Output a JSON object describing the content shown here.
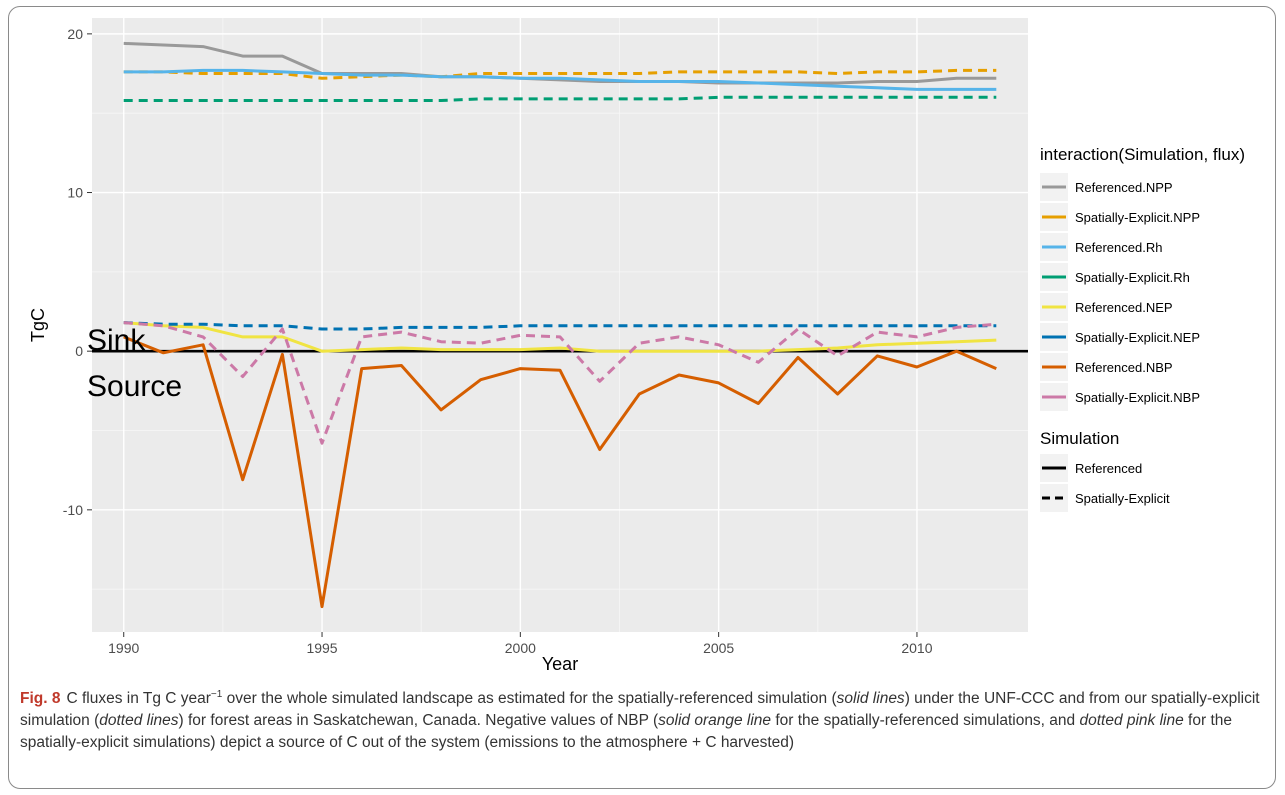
{
  "chart_data": {
    "type": "line",
    "xlabel": "Year",
    "ylabel": "TgC",
    "x": [
      1990,
      1991,
      1992,
      1993,
      1994,
      1995,
      1996,
      1997,
      1998,
      1999,
      2000,
      2001,
      2002,
      2003,
      2004,
      2005,
      2006,
      2007,
      2008,
      2009,
      2010,
      2011,
      2012
    ],
    "xlim": [
      1989.2,
      2012.8
    ],
    "ylim": [
      -17.7,
      21.0
    ],
    "x_ticks": [
      "1990",
      "1995",
      "2000",
      "2005",
      "2010"
    ],
    "y_ticks": [
      "-10",
      "0",
      "10",
      "20"
    ],
    "grid": true,
    "series": [
      {
        "name": "Referenced.NPP",
        "color": "#999999",
        "linetype": "solid",
        "values": [
          19.4,
          19.3,
          19.2,
          18.6,
          18.6,
          17.5,
          17.5,
          17.5,
          17.3,
          17.3,
          17.2,
          17.1,
          17.0,
          17.0,
          17.0,
          16.9,
          16.9,
          16.9,
          16.9,
          17.0,
          17.0,
          17.2,
          17.2
        ]
      },
      {
        "name": "Spatially-Explicit.NPP",
        "color": "#E69F00",
        "linetype": "dashed",
        "values": [
          17.6,
          17.6,
          17.5,
          17.5,
          17.5,
          17.2,
          17.3,
          17.4,
          17.3,
          17.5,
          17.5,
          17.5,
          17.5,
          17.5,
          17.6,
          17.6,
          17.6,
          17.6,
          17.5,
          17.6,
          17.6,
          17.7,
          17.7
        ]
      },
      {
        "name": "Referenced.Rh",
        "color": "#56B4E9",
        "linetype": "solid",
        "values": [
          17.6,
          17.6,
          17.7,
          17.7,
          17.6,
          17.5,
          17.4,
          17.4,
          17.3,
          17.3,
          17.2,
          17.2,
          17.1,
          17.0,
          17.0,
          17.0,
          16.9,
          16.8,
          16.7,
          16.6,
          16.5,
          16.5,
          16.5
        ]
      },
      {
        "name": "Spatially-Explicit.Rh",
        "color": "#009E73",
        "linetype": "dashed",
        "values": [
          15.8,
          15.8,
          15.8,
          15.8,
          15.8,
          15.8,
          15.8,
          15.8,
          15.8,
          15.9,
          15.9,
          15.9,
          15.9,
          15.9,
          15.9,
          16.0,
          16.0,
          16.0,
          16.0,
          16.0,
          16.0,
          16.0,
          16.0
        ]
      },
      {
        "name": "Referenced.NEP",
        "color": "#F0E442",
        "linetype": "solid",
        "values": [
          1.8,
          1.6,
          1.5,
          0.9,
          0.9,
          0.0,
          0.1,
          0.2,
          0.1,
          0.1,
          0.1,
          0.2,
          0.0,
          0.0,
          0.0,
          0.0,
          0.0,
          0.1,
          0.2,
          0.4,
          0.5,
          0.6,
          0.7
        ]
      },
      {
        "name": "Spatially-Explicit.NEP",
        "color": "#0072B2",
        "linetype": "dashed",
        "values": [
          1.8,
          1.7,
          1.7,
          1.6,
          1.6,
          1.4,
          1.4,
          1.5,
          1.5,
          1.5,
          1.6,
          1.6,
          1.6,
          1.6,
          1.6,
          1.6,
          1.6,
          1.6,
          1.6,
          1.6,
          1.6,
          1.6,
          1.6
        ]
      },
      {
        "name": "Referenced.NBP",
        "color": "#D55E00",
        "linetype": "solid",
        "values": [
          0.9,
          -0.1,
          0.4,
          -8.1,
          -0.2,
          -16.1,
          -1.1,
          -0.9,
          -3.7,
          -1.8,
          -1.1,
          -1.2,
          -6.2,
          -2.7,
          -1.5,
          -2.0,
          -3.3,
          -0.4,
          -2.7,
          -0.3,
          -1.0,
          0.0,
          -1.1
        ]
      },
      {
        "name": "Spatially-Explicit.NBP",
        "color": "#CC79A7",
        "linetype": "dashed",
        "values": [
          1.8,
          1.6,
          0.9,
          -1.6,
          1.4,
          -5.8,
          0.9,
          1.2,
          0.6,
          0.5,
          1.0,
          0.9,
          -1.9,
          0.5,
          0.9,
          0.4,
          -0.7,
          1.4,
          -0.3,
          1.2,
          0.9,
          1.5,
          1.7
        ]
      }
    ],
    "legend_title": "interaction(Simulation, flux)",
    "legend2_title": "Simulation",
    "legend2_items": [
      "Referenced",
      "Spatially-Explicit"
    ],
    "annotations": [
      "Sink",
      "Source"
    ]
  },
  "caption": {
    "fig_label": "Fig. 8",
    "part1": "C fluxes in Tg C year",
    "sup": "−1",
    "part2": " over the whole simulated landscape as estimated for the spatially-referenced simulation (",
    "em1": "solid lines",
    "part3": ") under the UNF-CCC and from our spatially-explicit simulation (",
    "em2": "dotted lines",
    "part4": ") for forest areas in Saskatchewan, Canada. Negative values of NBP (",
    "em3": "solid orange line",
    "part5": " for the spatially-referenced simulations, and ",
    "em4": "dotted pink line",
    "part6": " for the spatially-explicit simulations) depict a source of C out of the system (emissions to the atmosphere + C harvested)"
  }
}
